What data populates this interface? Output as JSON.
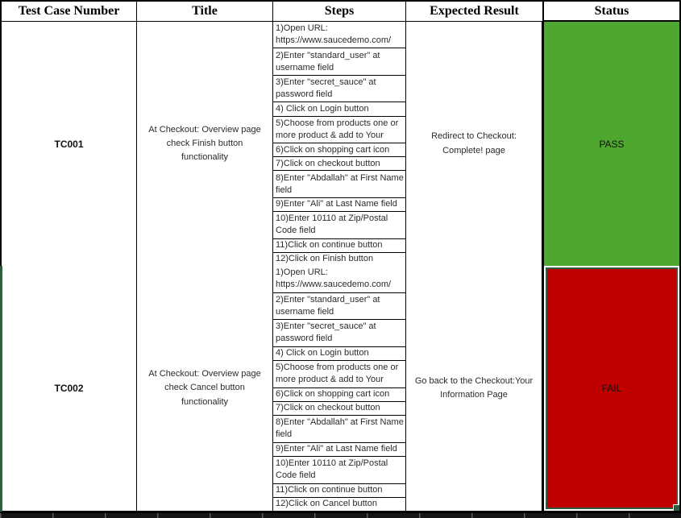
{
  "header": {
    "columns": [
      "Test Case Number",
      "Title",
      "Steps",
      "Expected Result",
      "Status"
    ]
  },
  "rows": [
    {
      "test_case_number": "TC001",
      "title": "At Checkout: Overview page check Finish button functionality",
      "steps": [
        {
          "text": "1)Open URL: https://www.saucedemo.com/",
          "lines": 2
        },
        {
          "text": "2)Enter \"standard_user\" at username field",
          "lines": 2
        },
        {
          "text": "3)Enter \"secret_sauce\" at password field",
          "lines": 2
        },
        {
          "text": "4) Click on Login button",
          "lines": 1
        },
        {
          "text": "5)Choose from products one or more product & add to Your",
          "lines": 2
        },
        {
          "text": "6)Click on shopping cart icon",
          "lines": 1
        },
        {
          "text": "7)Click on checkout button",
          "lines": 1
        },
        {
          "text": "8)Enter \"Abdallah\" at First Name field",
          "lines": 2
        },
        {
          "text": "9)Enter \"Ali\" at Last Name field",
          "lines": 1
        },
        {
          "text": "10)Enter 10110 at Zip/Postal Code field",
          "lines": 2
        },
        {
          "text": "11)Click on continue button",
          "lines": 1
        },
        {
          "text": "12)Click on Finish button",
          "lines": 1
        }
      ],
      "expected_result": "Redirect to Checkout: Complete! page",
      "status": "PASS"
    },
    {
      "test_case_number": "TC002",
      "title": "At Checkout: Overview page check Cancel button functionality",
      "steps": [
        {
          "text": "1)Open URL: https://www.saucedemo.com/",
          "lines": 2
        },
        {
          "text": "2)Enter \"standard_user\" at username field",
          "lines": 2
        },
        {
          "text": "3)Enter \"secret_sauce\" at password field",
          "lines": 2
        },
        {
          "text": "4) Click on Login button",
          "lines": 1
        },
        {
          "text": "5)Choose from products one or more product & add to Your",
          "lines": 2
        },
        {
          "text": "6)Click on shopping cart icon",
          "lines": 1
        },
        {
          "text": "7)Click on checkout button",
          "lines": 1
        },
        {
          "text": "8)Enter \"Abdallah\" at First Name field",
          "lines": 2
        },
        {
          "text": "9)Enter \"Ali\" at Last Name field",
          "lines": 1
        },
        {
          "text": "10)Enter 10110 at Zip/Postal Code field",
          "lines": 2
        },
        {
          "text": "11)Click on continue button",
          "lines": 1
        },
        {
          "text": "12)Click on Cancel button",
          "lines": 1
        }
      ],
      "expected_result": "Go back to the Checkout:Your Information Page",
      "status": "FAIL"
    }
  ],
  "colors": {
    "pass_green": "#4EA72E",
    "fail_red": "#C00000",
    "selection_green": "#2E5E3F",
    "border_black": "#000000"
  }
}
